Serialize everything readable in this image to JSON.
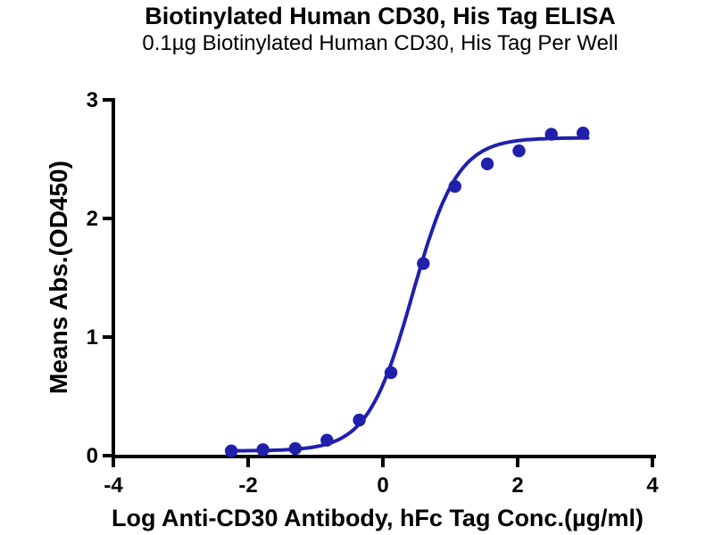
{
  "header": {
    "title": "Biotinylated Human CD30, His Tag ELISA",
    "subtitle": "0.1µg Biotinylated Human CD30, His Tag Per Well"
  },
  "chart_data": {
    "type": "scatter",
    "title": "Biotinylated Human CD30, His Tag ELISA",
    "subtitle": "0.1µg Biotinylated Human CD30, His Tag Per Well",
    "xlabel": "Log Anti-CD30 Antibody, hFc Tag Conc.(µg/ml)",
    "ylabel": "Means Abs.(OD450)",
    "xlim": [
      -4,
      4
    ],
    "ylim": [
      0,
      3
    ],
    "x_ticks": [
      -4,
      -2,
      0,
      2,
      4
    ],
    "y_ticks": [
      0,
      1,
      2,
      3
    ],
    "grid": false,
    "legend": false,
    "series": [
      {
        "name": "Anti-CD30 Antibody, hFc Tag",
        "x": [
          -2.25,
          -1.78,
          -1.3,
          -0.83,
          -0.35,
          0.12,
          0.6,
          1.07,
          1.55,
          2.02,
          2.5,
          2.97
        ],
        "y": [
          0.04,
          0.05,
          0.06,
          0.13,
          0.3,
          0.7,
          1.62,
          2.27,
          2.46,
          2.57,
          2.71,
          2.72
        ]
      }
    ],
    "fit_curve": {
      "model": "four_parameter_logistic",
      "bottom": 0.04,
      "top": 2.68,
      "log_ec50": 0.44,
      "hill_slope": 1.3,
      "x_start": -2.28,
      "x_end": 3.06
    },
    "colors": {
      "marker": "#2020ad",
      "line": "#2020ad",
      "axis": "#000000",
      "text": "#000000",
      "background": "#ffffff"
    }
  }
}
